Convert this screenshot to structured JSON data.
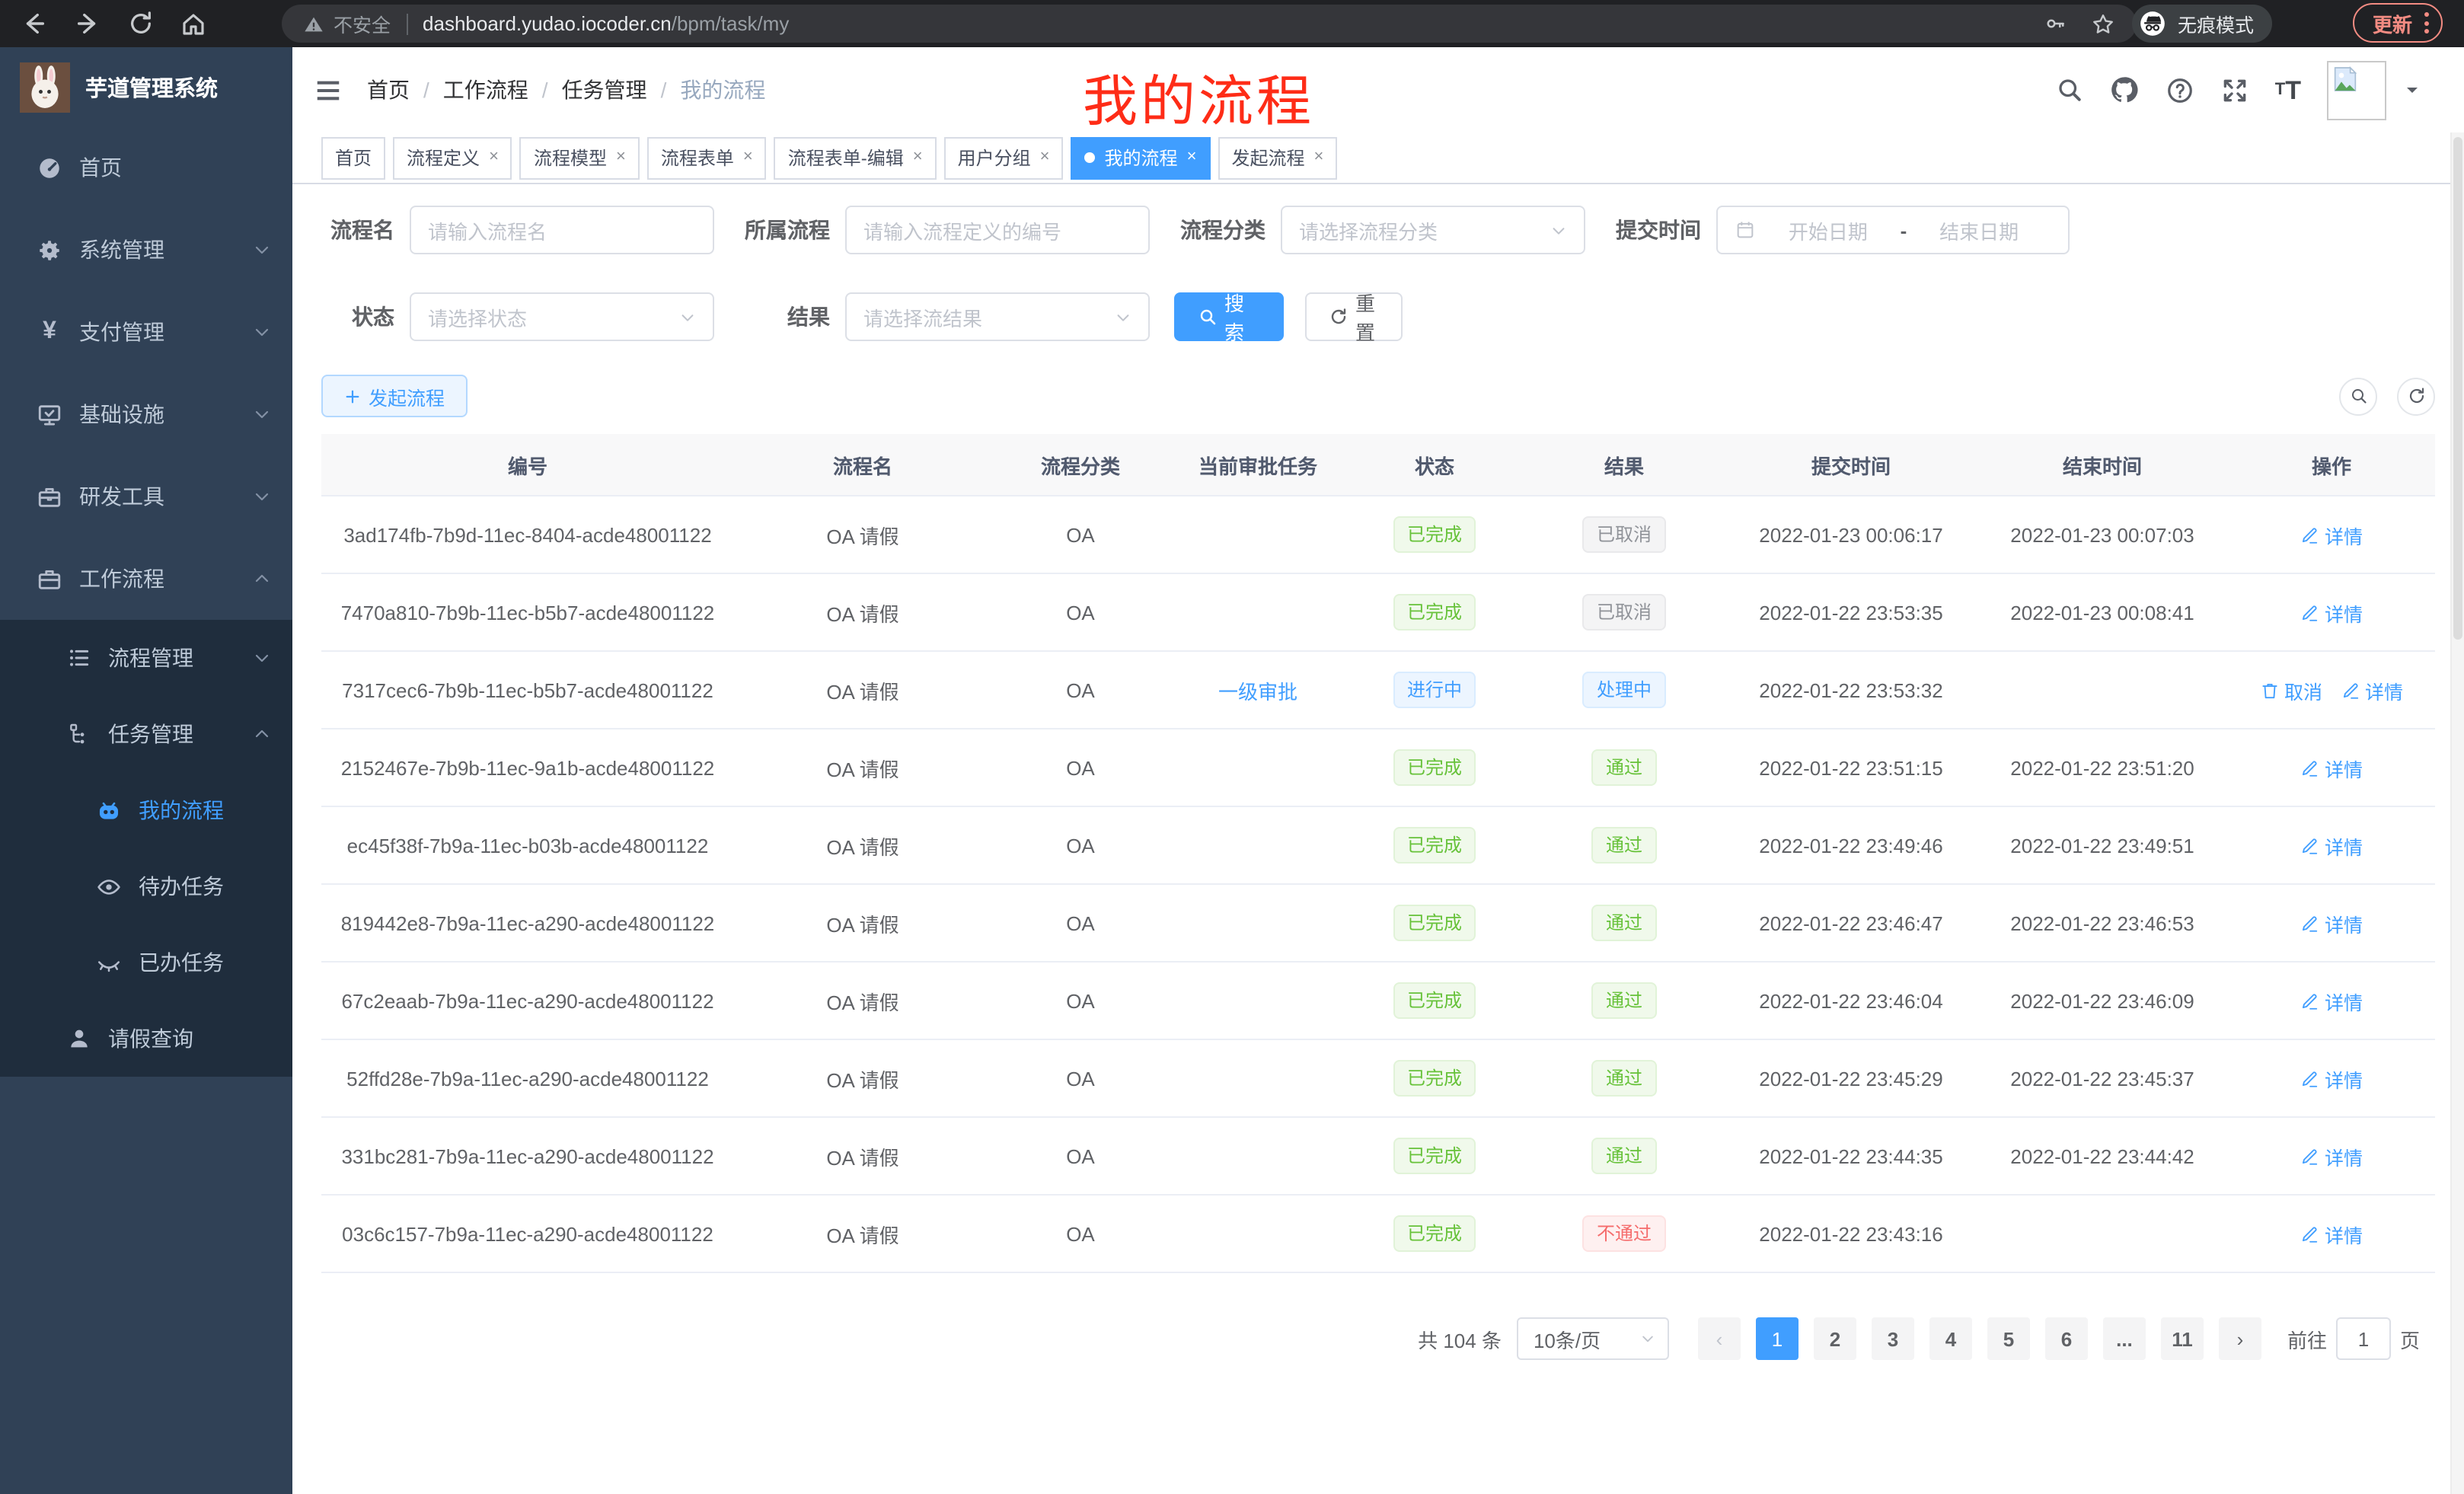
{
  "browser": {
    "security_label": "不安全",
    "url_host": "dashboard.yudao.iocoder.cn",
    "url_path": "/bpm/task/my",
    "incognito_label": "无痕模式",
    "update_label": "更新"
  },
  "annotation": {
    "text": "我的流程",
    "color": "#fe2c17"
  },
  "sidebar": {
    "title": "芋道管理系统",
    "menu": [
      {
        "label": "首页",
        "icon": "dashboard",
        "level": 1
      },
      {
        "label": "系统管理",
        "icon": "gear",
        "level": 1,
        "chevron": "down"
      },
      {
        "label": "支付管理",
        "icon": "yen",
        "level": 1,
        "chevron": "down"
      },
      {
        "label": "基础设施",
        "icon": "infra",
        "level": 1,
        "chevron": "down"
      },
      {
        "label": "研发工具",
        "icon": "toolbox",
        "level": 1,
        "chevron": "down"
      },
      {
        "label": "工作流程",
        "icon": "suitcase",
        "level": 1,
        "chevron": "up"
      }
    ],
    "submenu": [
      {
        "label": "流程管理",
        "icon": "process-list",
        "level": 2,
        "chevron": "down"
      },
      {
        "label": "任务管理",
        "icon": "task-tree",
        "level": 2,
        "chevron": "up"
      },
      {
        "label": "我的流程",
        "icon": "robot",
        "level": 3,
        "active": true
      },
      {
        "label": "待办任务",
        "icon": "eye",
        "level": 3
      },
      {
        "label": "已办任务",
        "icon": "eye-closed",
        "level": 3
      },
      {
        "label": "请假查询",
        "icon": "user",
        "level": 2
      }
    ]
  },
  "breadcrumb": [
    "首页",
    "工作流程",
    "任务管理",
    "我的流程"
  ],
  "tabs": [
    {
      "label": "首页",
      "closable": false
    },
    {
      "label": "流程定义",
      "closable": true
    },
    {
      "label": "流程模型",
      "closable": true
    },
    {
      "label": "流程表单",
      "closable": true
    },
    {
      "label": "流程表单-编辑",
      "closable": true
    },
    {
      "label": "用户分组",
      "closable": true
    },
    {
      "label": "我的流程",
      "closable": true,
      "active": true
    },
    {
      "label": "发起流程",
      "closable": true
    }
  ],
  "filters": {
    "process_name_label": "流程名",
    "process_name_placeholder": "请输入流程名",
    "parent_label": "所属流程",
    "parent_placeholder": "请输入流程定义的编号",
    "category_label": "流程分类",
    "category_placeholder": "请选择流程分类",
    "submit_time_label": "提交时间",
    "date_start_placeholder": "开始日期",
    "date_separator": "-",
    "date_end_placeholder": "结束日期",
    "status_label": "状态",
    "status_placeholder": "请选择状态",
    "result_label": "结果",
    "result_placeholder": "请选择流结果",
    "search_label": "搜索",
    "reset_label": "重置"
  },
  "toolbar": {
    "create_label": "发起流程"
  },
  "table": {
    "headers": [
      "编号",
      "流程名",
      "流程分类",
      "当前审批任务",
      "状态",
      "结果",
      "提交时间",
      "结束时间",
      "操作"
    ],
    "rows": [
      {
        "id": "3ad174fb-7b9d-11ec-8404-acde48001122",
        "name": "OA 请假",
        "category": "OA",
        "task": "",
        "status": "已完成",
        "status_type": "success",
        "result": "已取消",
        "result_type": "info",
        "submit_time": "2022-01-23 00:06:17",
        "end_time": "2022-01-23 00:07:03",
        "actions": [
          "详情"
        ]
      },
      {
        "id": "7470a810-7b9b-11ec-b5b7-acde48001122",
        "name": "OA 请假",
        "category": "OA",
        "task": "",
        "status": "已完成",
        "status_type": "success",
        "result": "已取消",
        "result_type": "info",
        "submit_time": "2022-01-22 23:53:35",
        "end_time": "2022-01-23 00:08:41",
        "actions": [
          "详情"
        ]
      },
      {
        "id": "7317cec6-7b9b-11ec-b5b7-acde48001122",
        "name": "OA 请假",
        "category": "OA",
        "task": "一级审批",
        "status": "进行中",
        "status_type": "primary",
        "result": "处理中",
        "result_type": "primary",
        "submit_time": "2022-01-22 23:53:32",
        "end_time": "",
        "actions": [
          "取消",
          "详情"
        ]
      },
      {
        "id": "2152467e-7b9b-11ec-9a1b-acde48001122",
        "name": "OA 请假",
        "category": "OA",
        "task": "",
        "status": "已完成",
        "status_type": "success",
        "result": "通过",
        "result_type": "success",
        "submit_time": "2022-01-22 23:51:15",
        "end_time": "2022-01-22 23:51:20",
        "actions": [
          "详情"
        ]
      },
      {
        "id": "ec45f38f-7b9a-11ec-b03b-acde48001122",
        "name": "OA 请假",
        "category": "OA",
        "task": "",
        "status": "已完成",
        "status_type": "success",
        "result": "通过",
        "result_type": "success",
        "submit_time": "2022-01-22 23:49:46",
        "end_time": "2022-01-22 23:49:51",
        "actions": [
          "详情"
        ]
      },
      {
        "id": "819442e8-7b9a-11ec-a290-acde48001122",
        "name": "OA 请假",
        "category": "OA",
        "task": "",
        "status": "已完成",
        "status_type": "success",
        "result": "通过",
        "result_type": "success",
        "submit_time": "2022-01-22 23:46:47",
        "end_time": "2022-01-22 23:46:53",
        "actions": [
          "详情"
        ]
      },
      {
        "id": "67c2eaab-7b9a-11ec-a290-acde48001122",
        "name": "OA 请假",
        "category": "OA",
        "task": "",
        "status": "已完成",
        "status_type": "success",
        "result": "通过",
        "result_type": "success",
        "submit_time": "2022-01-22 23:46:04",
        "end_time": "2022-01-22 23:46:09",
        "actions": [
          "详情"
        ]
      },
      {
        "id": "52ffd28e-7b9a-11ec-a290-acde48001122",
        "name": "OA 请假",
        "category": "OA",
        "task": "",
        "status": "已完成",
        "status_type": "success",
        "result": "通过",
        "result_type": "success",
        "submit_time": "2022-01-22 23:45:29",
        "end_time": "2022-01-22 23:45:37",
        "actions": [
          "详情"
        ]
      },
      {
        "id": "331bc281-7b9a-11ec-a290-acde48001122",
        "name": "OA 请假",
        "category": "OA",
        "task": "",
        "status": "已完成",
        "status_type": "success",
        "result": "通过",
        "result_type": "success",
        "submit_time": "2022-01-22 23:44:35",
        "end_time": "2022-01-22 23:44:42",
        "actions": [
          "详情"
        ]
      },
      {
        "id": "03c6c157-7b9a-11ec-a290-acde48001122",
        "name": "OA 请假",
        "category": "OA",
        "task": "",
        "status": "已完成",
        "status_type": "success",
        "result": "不通过",
        "result_type": "danger",
        "submit_time": "2022-01-22 23:43:16",
        "end_time": "",
        "actions": [
          "详情"
        ]
      }
    ]
  },
  "pagination": {
    "total_label": "共 104 条",
    "page_size_label": "10条/页",
    "pages": [
      "1",
      "2",
      "3",
      "4",
      "5",
      "6",
      "...",
      "11"
    ],
    "active_page": "1",
    "goto_label": "前往",
    "goto_value": "1",
    "page_unit_label": "页"
  },
  "colors": {
    "accent": "#409eff",
    "success": "#67c23a",
    "danger": "#f56c6c",
    "info": "#909399",
    "sidebar": "#304156"
  }
}
